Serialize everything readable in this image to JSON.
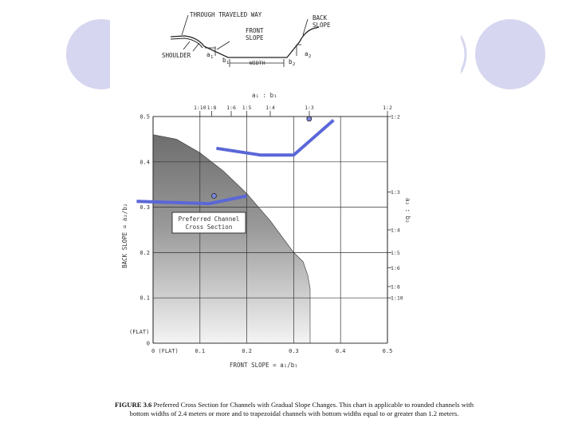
{
  "colors": {
    "background": "#ffffff",
    "decor_circle_fill": "#d6d6f0",
    "decor_circle_stroke": "#c9c9e6",
    "highlight_line": "#5a67d8",
    "marker_fill": "#7b86e0",
    "preferred_region_dark": "#7a7a7a",
    "preferred_region_light": "#f2f2f2",
    "gridline": "#333333"
  },
  "sketch": {
    "label_through": "THROUGH TRAVELED WAY",
    "label_front": "FRONT",
    "label_slope": "SLOPE",
    "label_back": "BACK",
    "label_back_slope": "SLOPE",
    "label_shoulder": "SHOULDER",
    "label_width": "WIDTH",
    "label_a1": "a",
    "label_a1_sub": "1",
    "label_b1": "b",
    "label_b1_sub": "1",
    "label_a2": "a",
    "label_a2_sub": "2",
    "label_b2": "b",
    "label_b2_sub": "2"
  },
  "chart_data": {
    "type": "area",
    "xlabel": "FRONT SLOPE = a₁/b₁",
    "ylabel": "BACK SLOPE = a₂/b₂",
    "top_axis_label": "a₁ : b₁",
    "right_axis_label": "a₂ : b₂",
    "xlim": [
      0,
      0.5
    ],
    "ylim": [
      0,
      0.5
    ],
    "grid": true,
    "x_ticks": [
      {
        "value": 0,
        "label": "0 (FLAT)"
      },
      {
        "value": 0.1,
        "label": "0.1"
      },
      {
        "value": 0.2,
        "label": "0.2"
      },
      {
        "value": 0.3,
        "label": "0.3"
      },
      {
        "value": 0.4,
        "label": "0.4"
      },
      {
        "value": 0.5,
        "label": "0.5"
      }
    ],
    "y_ticks": [
      {
        "value": 0,
        "label": "0"
      },
      {
        "value": 0.1,
        "label": "0.1"
      },
      {
        "value": 0.2,
        "label": "0.2"
      },
      {
        "value": 0.3,
        "label": "0.3"
      },
      {
        "value": 0.4,
        "label": "0.4"
      },
      {
        "value": 0.5,
        "label": "0.5"
      }
    ],
    "y_extra_label": "(FLAT)",
    "top_ticks": [
      {
        "value": 0.1,
        "label": "1:10"
      },
      {
        "value": 0.125,
        "label": "1:8"
      },
      {
        "value": 0.1667,
        "label": "1:6"
      },
      {
        "value": 0.2,
        "label": "1:5"
      },
      {
        "value": 0.25,
        "label": "1:4"
      },
      {
        "value": 0.3333,
        "label": "1:3"
      },
      {
        "value": 0.5,
        "label": "1:2"
      }
    ],
    "right_ticks": [
      {
        "value": 0.5,
        "label": "1:2"
      },
      {
        "value": 0.3333,
        "label": "1:3"
      },
      {
        "value": 0.25,
        "label": "1:4"
      },
      {
        "value": 0.2,
        "label": "1:5"
      },
      {
        "value": 0.1667,
        "label": "1:6"
      },
      {
        "value": 0.125,
        "label": "1:8"
      },
      {
        "value": 0.1,
        "label": "1:10"
      }
    ],
    "region": {
      "name": "Preferred Channel Cross Section",
      "label_line1": "Preferred Channel",
      "label_line2": "Cross Section",
      "boundary": [
        [
          0,
          0.46
        ],
        [
          0.05,
          0.45
        ],
        [
          0.1,
          0.42
        ],
        [
          0.15,
          0.38
        ],
        [
          0.2,
          0.33
        ],
        [
          0.25,
          0.27
        ],
        [
          0.3,
          0.2
        ],
        [
          0.32,
          0.18
        ],
        [
          0.33,
          0.15
        ],
        [
          0.335,
          0.12
        ],
        [
          0.335,
          0
        ]
      ]
    },
    "highlight_lines": [
      {
        "points": [
          [
            0.135,
            0.43
          ],
          [
            0.23,
            0.415
          ],
          [
            0.3,
            0.415
          ],
          [
            0.385,
            0.492
          ]
        ]
      },
      {
        "points": [
          [
            -0.035,
            0.313
          ],
          [
            0.12,
            0.308
          ],
          [
            0.2,
            0.325
          ]
        ]
      }
    ],
    "markers": [
      {
        "x": 0.333,
        "y": 0.495
      },
      {
        "x": 0.13,
        "y": 0.325
      }
    ]
  },
  "caption": {
    "figure_label": "FIGURE 3.6",
    "text": "Preferred Cross Section for Channels with Gradual Slope Changes. This chart is applicable to rounded channels with bottom widths of 2.4 meters or more and to trapezoidal channels with bottom widths equal to or greater than 1.2 meters."
  }
}
